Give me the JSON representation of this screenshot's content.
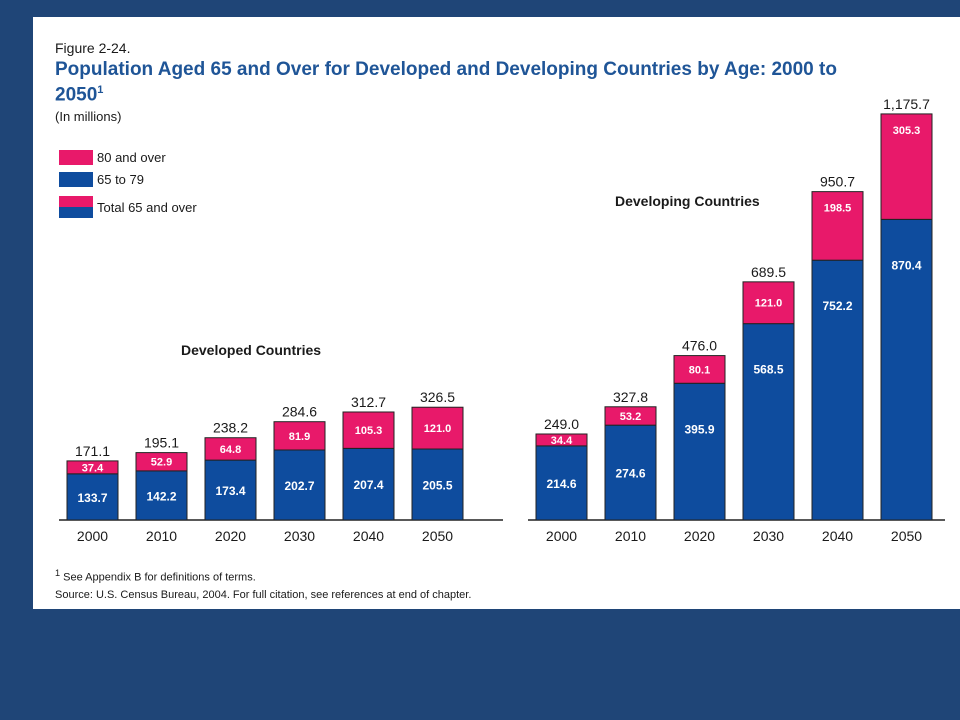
{
  "figure": {
    "label": "Figure 2-24.",
    "title": "Population Aged 65 and Over for Developed and Developing Countries by Age: 2000 to 2050",
    "title_superscript": "1",
    "units": "(In millions)",
    "footnote_marker": "1",
    "footnote": "See Appendix B for definitions of terms.",
    "source": "Source: U.S. Census Bureau, 2004. For full citation, see references at end of chapter."
  },
  "legend": {
    "items": [
      {
        "label": "80 and over",
        "color": "#e8196a"
      },
      {
        "label": "65 to 79",
        "color": "#0e4c9e"
      },
      {
        "label": "Total 65 and over",
        "color": "split"
      }
    ]
  },
  "colors": {
    "background": "#1f4577",
    "pink": "#e8196a",
    "blue": "#0e4c9e",
    "title": "#1f5597"
  },
  "chart_data": {
    "type": "bar",
    "stacked": true,
    "categories": [
      "2000",
      "2010",
      "2020",
      "2030",
      "2040",
      "2050"
    ],
    "groups": [
      {
        "label": "Developed Countries",
        "series": [
          {
            "name": "65 to 79",
            "values": [
              133.7,
              142.2,
              173.4,
              202.7,
              207.4,
              205.5
            ]
          },
          {
            "name": "80 and over",
            "values": [
              37.4,
              52.9,
              64.8,
              81.9,
              105.3,
              121.0
            ]
          }
        ],
        "totals": [
          "171.1",
          "195.1",
          "238.2",
          "284.6",
          "312.7",
          "326.5"
        ]
      },
      {
        "label": "Developing Countries",
        "series": [
          {
            "name": "65 to 79",
            "values": [
              214.6,
              274.6,
              395.9,
              568.5,
              752.2,
              870.4
            ]
          },
          {
            "name": "80 and over",
            "values": [
              34.4,
              53.2,
              80.1,
              121.0,
              198.5,
              305.3
            ]
          }
        ],
        "totals": [
          "249.0",
          "327.8",
          "476.0",
          "689.5",
          "950.7",
          "1,175.7"
        ]
      }
    ],
    "ylim": [
      0,
      1175.7
    ]
  }
}
